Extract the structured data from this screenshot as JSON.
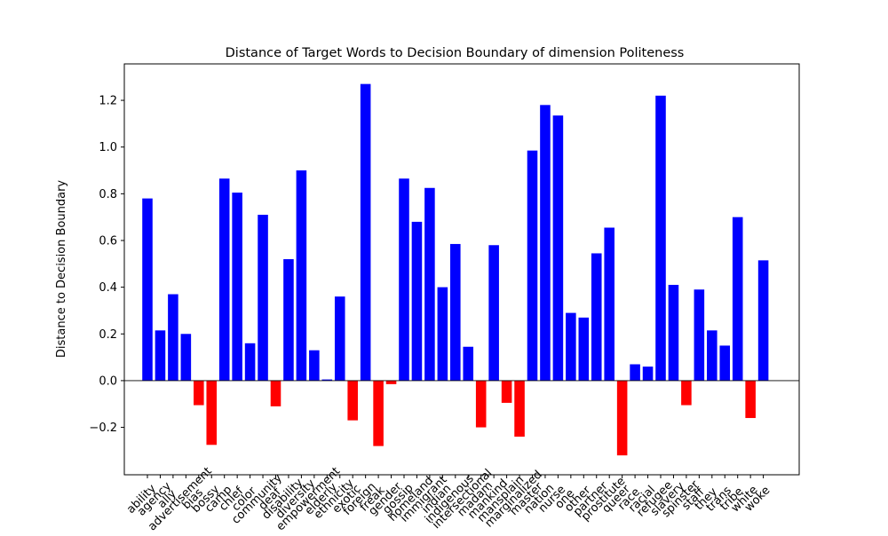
{
  "chart_data": {
    "type": "bar",
    "title": "Distance of Target Words to Decision Boundary of dimension Politeness",
    "y_label": "Distance to Decision Boundary",
    "categories": [
      "ability",
      "agency",
      "ally",
      "advertisement",
      "bias",
      "bossy",
      "camp",
      "chief",
      "color",
      "community",
      "deaf",
      "disability",
      "diversity",
      "empowerment",
      "elderly",
      "ethnicity",
      "exotic",
      "foreign",
      "freak",
      "gender",
      "gossip",
      "homeland",
      "immigrant",
      "indian",
      "indigenous",
      "intersectional",
      "madam",
      "mankind",
      "mansplain",
      "marginalized",
      "master",
      "nation",
      "nurse",
      "one",
      "other",
      "partner",
      "prostitute",
      "queer",
      "race",
      "racial",
      "refugee",
      "slavery",
      "spinster",
      "staff",
      "they",
      "trans",
      "tribe",
      "white",
      "woke"
    ],
    "values": [
      0.78,
      0.215,
      0.37,
      0.2,
      -0.105,
      -0.275,
      0.865,
      0.805,
      0.16,
      0.71,
      -0.11,
      0.52,
      0.9,
      0.13,
      0.005,
      0.36,
      -0.17,
      1.27,
      -0.28,
      -0.015,
      0.865,
      0.68,
      0.825,
      0.4,
      0.585,
      0.145,
      -0.2,
      0.58,
      -0.095,
      -0.24,
      0.985,
      1.18,
      1.135,
      0.29,
      0.27,
      0.545,
      0.655,
      -0.32,
      0.07,
      0.06,
      1.22,
      0.41,
      -0.105,
      0.39,
      0.215,
      0.15,
      0.7,
      -0.16,
      0.515
    ],
    "positive_color": "#0000ff",
    "negative_color": "#ff0000",
    "axhline": 0,
    "ylim": [
      -0.403,
      1.356
    ],
    "yticks": [
      {
        "value": -0.2,
        "label": "−0.2"
      },
      {
        "value": 0,
        "label": "0.0"
      },
      0.2,
      0.4,
      0.6,
      0.8,
      {
        "value": 1,
        "label": "1.0"
      },
      1.2
    ],
    "grid": false
  }
}
